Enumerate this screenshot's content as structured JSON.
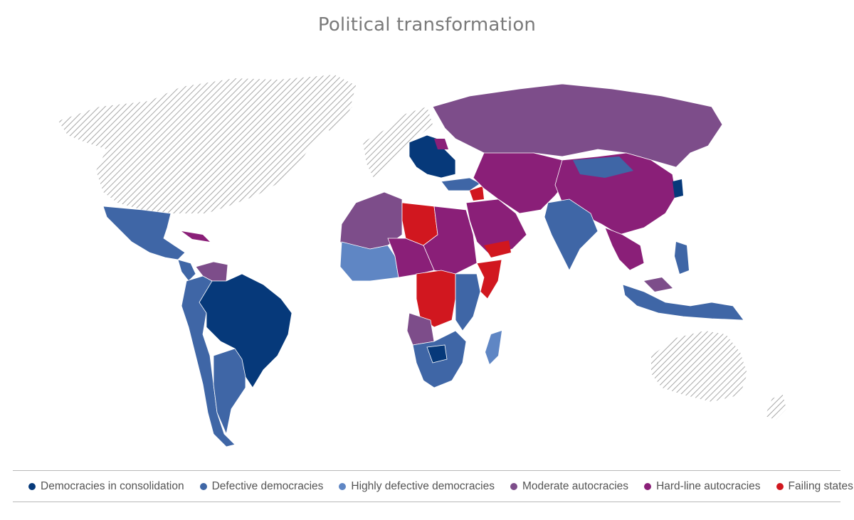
{
  "title": "Political transformation",
  "legend": [
    {
      "label": "Democracies in consolidation",
      "color": "#06397a",
      "key": "consolidated"
    },
    {
      "label": "Defective democracies",
      "color": "#3f66a6",
      "key": "defective"
    },
    {
      "label": "Highly defective democracies",
      "color": "#5f86c4",
      "key": "highly_defective"
    },
    {
      "label": "Moderate autocracies",
      "color": "#7d4d8a",
      "key": "moderate_auto"
    },
    {
      "label": "Hard-line autocracies",
      "color": "#8a1f78",
      "key": "hardline_auto"
    },
    {
      "label": "Failing states",
      "color": "#d1171f",
      "key": "failing"
    }
  ],
  "colors": {
    "not_assessed_hatch": "#a8a8a8",
    "border": "#ffffff"
  }
}
